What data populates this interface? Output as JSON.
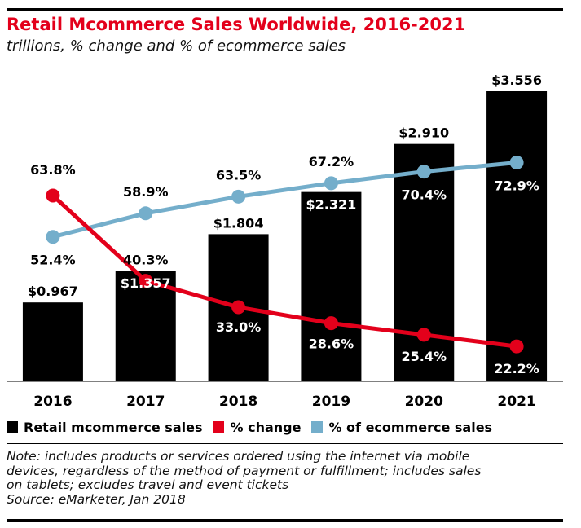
{
  "title": "Retail Mcommerce Sales Worldwide, 2016-2021",
  "subtitle": "trillions, % change and % of ecommerce sales",
  "legend": {
    "items": [
      {
        "label": "Retail mcommerce sales",
        "color": "#000000"
      },
      {
        "label": "% change",
        "color": "#e3001b"
      },
      {
        "label": "% of ecommerce sales",
        "color": "#74aecb"
      }
    ]
  },
  "note": {
    "lines": [
      "Note: includes products or services ordered using the internet via mobile",
      "devices, regardless of the method of payment or fulfillment; includes sales",
      "on tablets; excludes travel and event tickets",
      "Source: eMarketer, Jan 2018"
    ]
  },
  "chart_data": {
    "type": "bar",
    "title": "Retail Mcommerce Sales Worldwide, 2016-2021",
    "subtitle": "trillions, % change and % of ecommerce sales",
    "categories": [
      "2016",
      "2017",
      "2018",
      "2019",
      "2020",
      "2021"
    ],
    "series": [
      {
        "name": "Retail mcommerce sales",
        "type": "bar",
        "color": "#000000",
        "values": [
          0.967,
          1.357,
          1.804,
          2.321,
          2.91,
          3.556
        ],
        "labels": [
          "$0.967",
          "$1.357",
          "$1.804",
          "$2.321",
          "$2.910",
          "$3.556"
        ]
      },
      {
        "name": "% change",
        "type": "line",
        "color": "#e3001b",
        "values": [
          63.8,
          40.3,
          33.0,
          28.6,
          25.4,
          22.2
        ],
        "labels": [
          "63.8%",
          "40.3%",
          "33.0%",
          "28.6%",
          "25.4%",
          "22.2%"
        ]
      },
      {
        "name": "% of ecommerce sales",
        "type": "line",
        "color": "#74aecb",
        "values": [
          52.4,
          58.9,
          63.5,
          67.2,
          70.4,
          72.9
        ],
        "labels": [
          "52.4%",
          "58.9%",
          "63.5%",
          "67.2%",
          "70.4%",
          "72.9%"
        ]
      }
    ],
    "xlabel": "",
    "ylabel": "",
    "ylim": [
      0,
      3.556
    ],
    "grid": false,
    "legend_position": "bottom"
  }
}
